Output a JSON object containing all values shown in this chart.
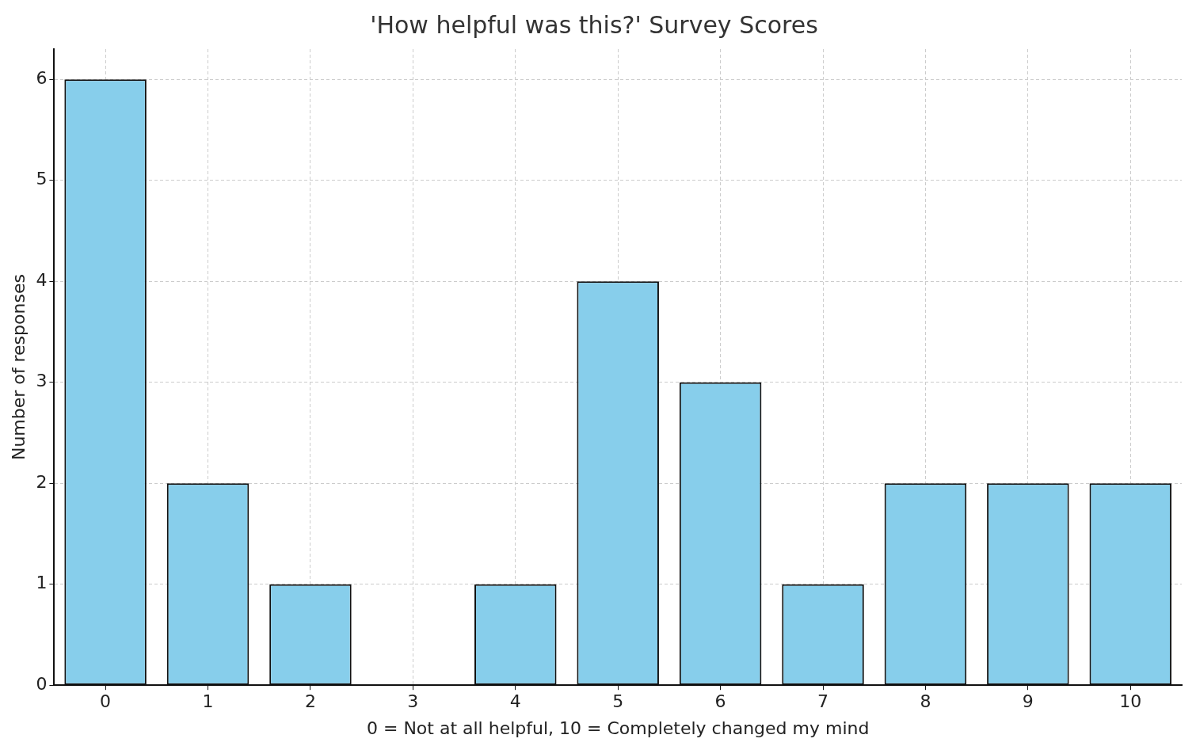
{
  "chart_data": {
    "type": "bar",
    "title": "'How helpful was this?' Survey Scores",
    "xlabel": "0 = Not at all helpful, 10 = Completely changed my mind",
    "ylabel": "Number of responses",
    "categories": [
      "0",
      "1",
      "2",
      "3",
      "4",
      "5",
      "6",
      "7",
      "8",
      "9",
      "10"
    ],
    "values": [
      6,
      2,
      1,
      0,
      1,
      4,
      3,
      1,
      2,
      2,
      2
    ],
    "color": "#87ceeb",
    "ylim": [
      0,
      6.3
    ],
    "yticks": [
      0,
      1,
      2,
      3,
      4,
      5,
      6
    ],
    "grid": true
  }
}
